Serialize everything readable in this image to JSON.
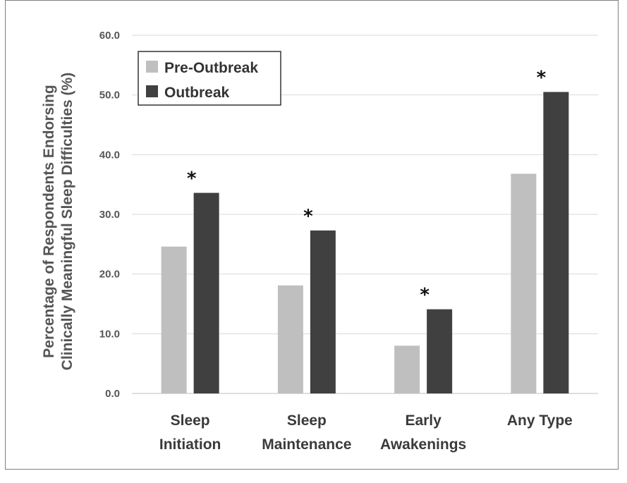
{
  "chart_data": {
    "type": "bar",
    "categories": [
      [
        "Sleep",
        "Initiation"
      ],
      [
        "Sleep",
        "Maintenance"
      ],
      [
        "Early",
        "Awakenings"
      ],
      [
        "Any Type"
      ]
    ],
    "series": [
      {
        "name": "Pre-Outbreak",
        "color": "#bfbfbf",
        "values": [
          24.6,
          18.1,
          8.0,
          36.8
        ]
      },
      {
        "name": "Outbreak",
        "color": "#404040",
        "values": [
          33.6,
          27.3,
          14.1,
          50.5
        ]
      }
    ],
    "significance_marks": [
      "*",
      "*",
      "*",
      "*"
    ],
    "ylabel_lines": [
      "Percentage of Respondents Endorsing",
      "Clinically Meaningful Sleep Difficulties (%)"
    ],
    "xlabel": "",
    "title": "",
    "ylim": [
      0,
      60
    ],
    "yticks": [
      "0.0",
      "10.0",
      "20.0",
      "30.0",
      "40.0",
      "50.0",
      "60.0"
    ],
    "grid": true,
    "legend_position": "top-left"
  }
}
